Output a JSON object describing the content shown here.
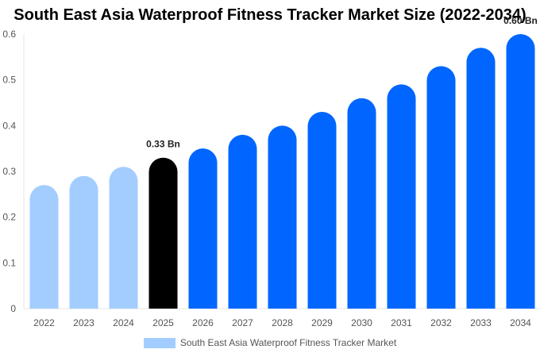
{
  "chart_data": {
    "type": "bar",
    "title": "South East Asia Waterproof Fitness Tracker Market Size (2022-2034)",
    "xlabel": "",
    "ylabel": "",
    "categories": [
      "2022",
      "2023",
      "2024",
      "2025",
      "2026",
      "2027",
      "2028",
      "2029",
      "2030",
      "2031",
      "2032",
      "2033",
      "2034"
    ],
    "series": [
      {
        "name": "South East Asia Waterproof Fitness Tracker Market",
        "values": [
          0.27,
          0.29,
          0.31,
          0.33,
          0.35,
          0.38,
          0.4,
          0.43,
          0.46,
          0.49,
          0.53,
          0.57,
          0.6
        ]
      }
    ],
    "bar_colors": [
      "#a3cdff",
      "#a3cdff",
      "#a3cdff",
      "#000000",
      "#0066ff",
      "#0066ff",
      "#0066ff",
      "#0066ff",
      "#0066ff",
      "#0066ff",
      "#0066ff",
      "#0066ff",
      "#0066ff"
    ],
    "data_labels": [
      {
        "index": 3,
        "text": "0.33 Bn"
      },
      {
        "index": 12,
        "text": "0.60 Bn"
      }
    ],
    "yticks": [
      "0",
      "0.1",
      "0.2",
      "0.3",
      "0.4",
      "0.5",
      "0.6"
    ],
    "ylim": [
      0,
      0.6
    ],
    "grid": false,
    "legend_position": "bottom",
    "colors": {
      "historical": "#a3cdff",
      "base_year": "#000000",
      "forecast": "#0066ff"
    }
  }
}
